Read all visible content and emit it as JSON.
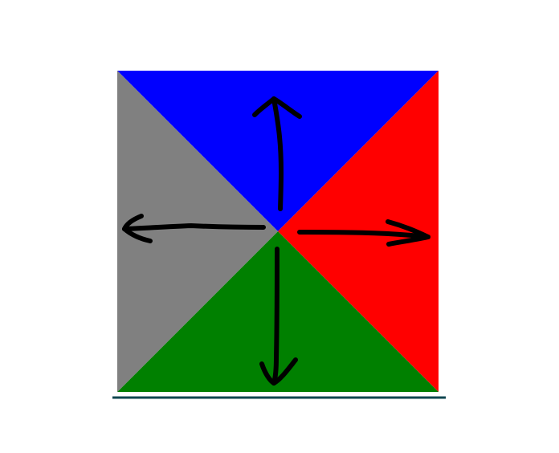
{
  "diagram": {
    "quadrants": [
      {
        "id": "top",
        "color": "#0000ff"
      },
      {
        "id": "right",
        "color": "#ff0000"
      },
      {
        "id": "bottom",
        "color": "#008000"
      },
      {
        "id": "left",
        "color": "#808080"
      }
    ],
    "arrows": [
      {
        "id": "up",
        "icon": "arrow-up-icon"
      },
      {
        "id": "right",
        "icon": "arrow-right-icon"
      },
      {
        "id": "down",
        "icon": "arrow-down-icon"
      },
      {
        "id": "left",
        "icon": "arrow-left-icon"
      }
    ],
    "arrow_color": "#000000",
    "underline_color": "#0f4650"
  }
}
